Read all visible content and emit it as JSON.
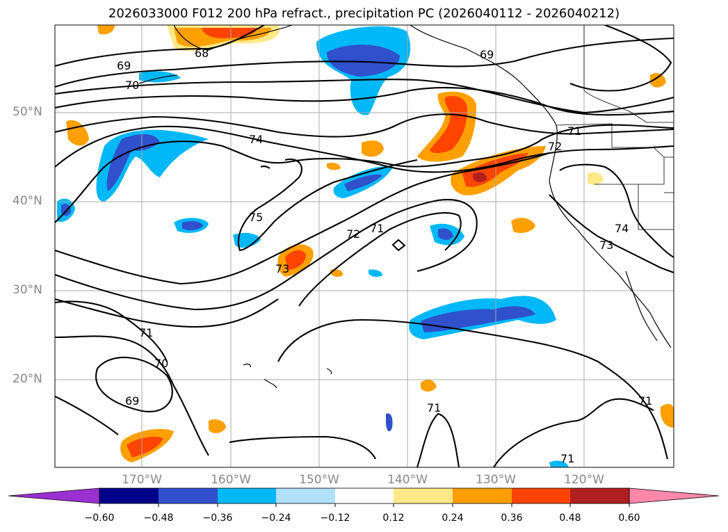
{
  "title": "2026033000 F012 200 hPa refract., precipitation PC (2026040112 - 2026040212)",
  "lat_labels": [
    "50°N",
    "40°N",
    "30°N",
    "20°N"
  ],
  "lon_labels": [
    "170°W",
    "160°W",
    "150°W",
    "140°W",
    "130°W",
    "120°W"
  ],
  "contour_labels": [
    "68",
    "69",
    "70",
    "74",
    "75",
    "72",
    "71",
    "73",
    "69",
    "71",
    "72",
    "74",
    "73",
    "71",
    "70",
    "69",
    "71",
    "71",
    "71"
  ],
  "colorbar": {
    "ticks": [
      "−0.60",
      "−0.48",
      "−0.36",
      "−0.24",
      "−0.12",
      "0.12",
      "0.24",
      "0.36",
      "0.48",
      "0.60"
    ],
    "colors": [
      "#9b30d0",
      "#000088",
      "#3050cc",
      "#00b8f8",
      "#b0e0fa",
      "#ffffff",
      "#ffe888",
      "#ffa000",
      "#ff4400",
      "#b02020",
      "#ff88aa"
    ]
  }
}
